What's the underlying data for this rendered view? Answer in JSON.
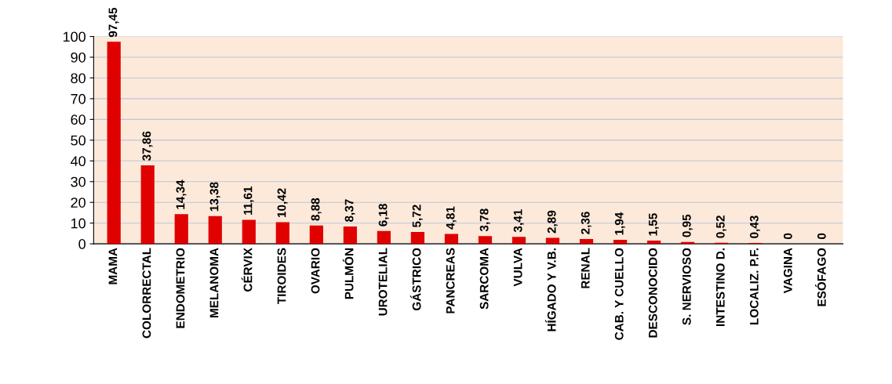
{
  "chart_data": {
    "type": "bar",
    "categories": [
      "MAMA",
      "COLORRECTAL",
      "ENDOMETRIO",
      "MELANOMA",
      "CÉRVIX",
      "TIROIDES",
      "OVARIO",
      "PULMÓN",
      "UROTELIAL",
      "GÁSTRICO",
      "PANCREAS",
      "SARCOMA",
      "VULVA",
      "HÍGADO Y V.B.",
      "RENAL",
      "CAB. Y CUELLO",
      "DESCONOCIDO",
      "S. NERVIOSO",
      "INTESTINO D.",
      "LOCALIZ. P.F.",
      "VAGINA",
      "ESÓFAGO"
    ],
    "values": [
      97.45,
      37.86,
      14.34,
      13.38,
      11.61,
      10.42,
      8.88,
      8.37,
      6.18,
      5.72,
      4.81,
      3.78,
      3.41,
      2.89,
      2.36,
      1.94,
      1.55,
      0.95,
      0.52,
      0.43,
      0,
      0
    ],
    "value_labels": [
      "97,45",
      "37,86",
      "14,34",
      "13,38",
      "11,61",
      "10,42",
      "8,88",
      "8,37",
      "6,18",
      "5,72",
      "4,81",
      "3,78",
      "3,41",
      "2,89",
      "2,36",
      "1,94",
      "1,55",
      "0,95",
      "0,52",
      "0,43",
      "0",
      "0"
    ],
    "color": "#e00000",
    "ylim": [
      0,
      100
    ],
    "yticks": [
      0,
      10,
      20,
      30,
      40,
      50,
      60,
      70,
      80,
      90,
      100
    ],
    "grid": "y",
    "legend": false
  }
}
